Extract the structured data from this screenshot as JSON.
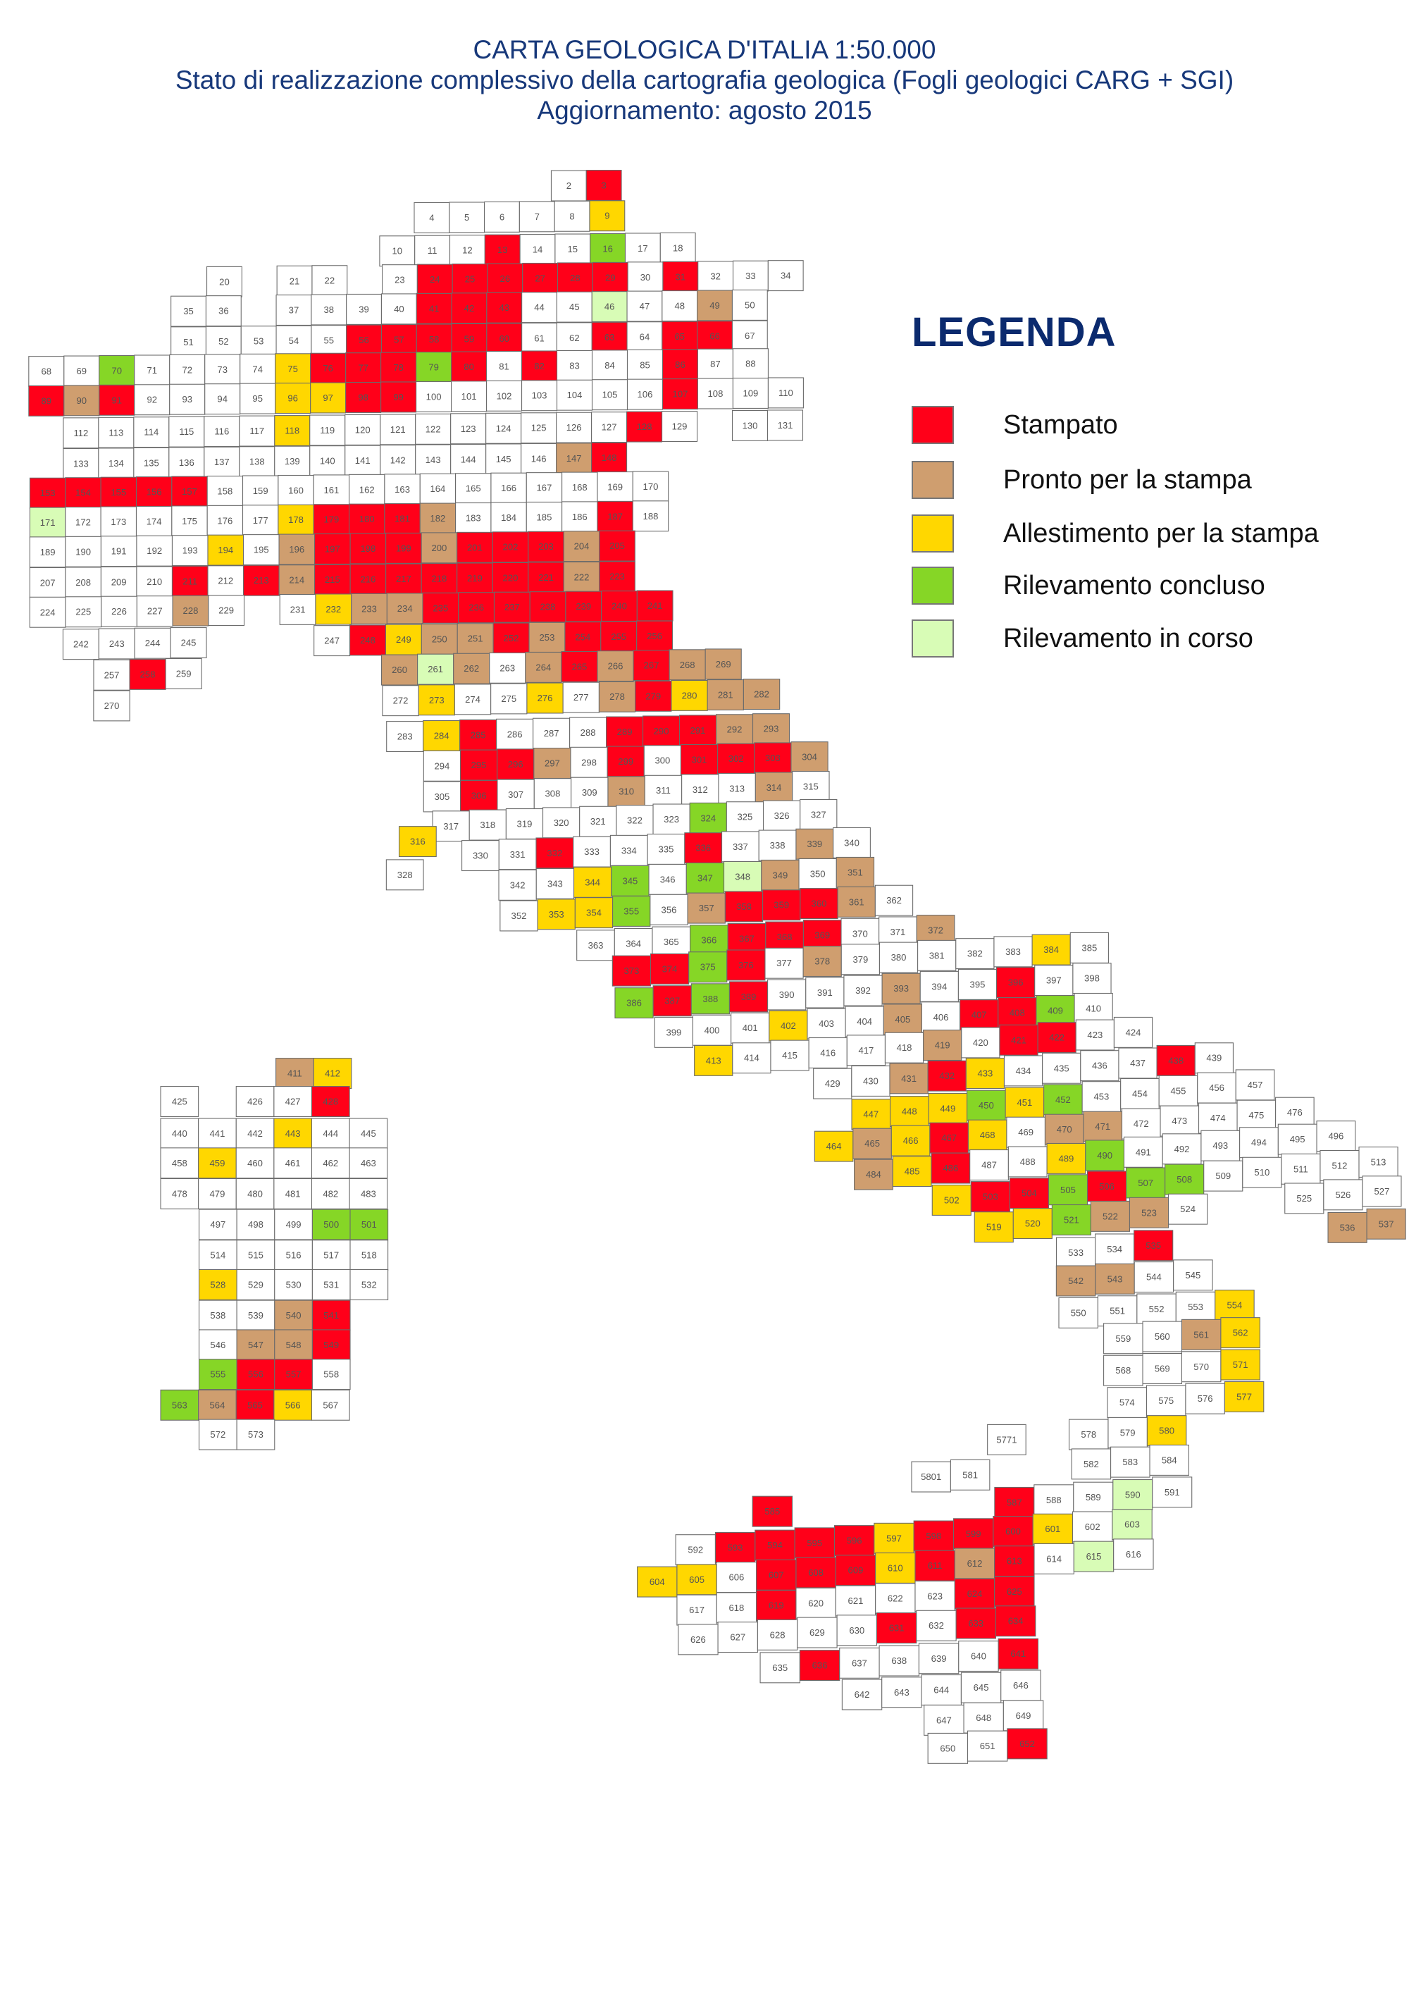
{
  "title": {
    "line1": "CARTA GEOLOGICA D'ITALIA 1:50.000",
    "line2": "Stato di realizzazione complessivo della cartografia geologica (Fogli geologici CARG + SGI)",
    "line3": "Aggiornamento:  agosto 2015"
  },
  "legend": {
    "title": "LEGENDA",
    "items": [
      {
        "code": "S",
        "label": "Stampato",
        "color": "#ff0019"
      },
      {
        "code": "P",
        "label": "Pronto per la stampa",
        "color": "#cf9e6f"
      },
      {
        "code": "A",
        "label": "Allestimento per la stampa",
        "color": "#ffd700"
      },
      {
        "code": "C",
        "label": "Rilevamento concluso",
        "color": "#86d626"
      },
      {
        "code": "I",
        "label": "Rilevamento in corso",
        "color": "#d8fcb6"
      }
    ],
    "default_color": "#ffffff"
  },
  "map": {
    "rows": [
      [
        "2",
        "3:S"
      ],
      [
        "4",
        "5",
        "6",
        "7",
        "8",
        "9:A"
      ],
      [
        "10",
        "11",
        "12",
        "13:S",
        "14",
        "15",
        "16:C",
        "17",
        "18"
      ],
      [
        "20",
        "",
        "21",
        "22",
        "",
        "23",
        "24:S",
        "25:S",
        "26:S",
        "27:S",
        "28:S",
        "29:S",
        "30",
        "31:S",
        "32",
        "33",
        "34"
      ],
      [
        "35",
        "36",
        "",
        "37",
        "38",
        "39",
        "40",
        "41:S",
        "42:S",
        "43:S",
        "44",
        "45",
        "46:I",
        "47",
        "48",
        "49:P",
        "50"
      ],
      [
        "51",
        "52",
        "53",
        "54",
        "55",
        "56:S",
        "57:S",
        "58:S",
        "59:S",
        "60:S",
        "61",
        "62",
        "63:S",
        "64",
        "65:S",
        "66:S",
        "67"
      ],
      [
        "68",
        "69",
        "70:C",
        "71",
        "72",
        "73",
        "74",
        "75:A",
        "76:S",
        "77:S",
        "78:S",
        "79:C",
        "80:S",
        "81",
        "82:S",
        "83",
        "84",
        "85",
        "86:S",
        "87",
        "88"
      ],
      [
        "89:S",
        "90:P",
        "91:S",
        "92",
        "93",
        "94",
        "95",
        "96:A",
        "97:A",
        "98:S",
        "99:S",
        "100",
        "101",
        "102",
        "103",
        "104",
        "105",
        "106",
        "107:S",
        "108",
        "109",
        "110"
      ],
      [
        "112",
        "113",
        "114",
        "115",
        "116",
        "117",
        "118:A",
        "119",
        "120",
        "121",
        "122",
        "123",
        "124",
        "125",
        "126",
        "127",
        "128:S",
        "129",
        "",
        "130",
        "131"
      ],
      [
        "133",
        "134",
        "135",
        "136",
        "137",
        "138",
        "139",
        "140",
        "141",
        "142",
        "143",
        "144",
        "145",
        "146",
        "147:P",
        "148:S"
      ],
      [
        "153:S",
        "154:S",
        "155:S",
        "156:S",
        "157:S",
        "158",
        "159",
        "160",
        "161",
        "162",
        "163",
        "164",
        "165",
        "166",
        "167",
        "168",
        "169",
        "170"
      ],
      [
        "171:I",
        "172",
        "173",
        "174",
        "175",
        "176",
        "177",
        "178:A",
        "179:S",
        "180:S",
        "181:S",
        "182:P",
        "183",
        "184",
        "185",
        "186",
        "187:S",
        "188"
      ],
      [
        "189",
        "190",
        "191",
        "192",
        "193",
        "194:A",
        "195",
        "196:P",
        "197:S",
        "198:S",
        "199:S",
        "200:P",
        "201:S",
        "202:S",
        "203:S",
        "204:P",
        "205:S"
      ],
      [
        "207",
        "208",
        "209",
        "210",
        "211:S",
        "212",
        "213:S",
        "214:P",
        "215:S",
        "216:S",
        "217:S",
        "218:S",
        "219:S",
        "220:S",
        "221:S",
        "222:P",
        "223:S"
      ],
      [
        "224",
        "225",
        "226",
        "227",
        "228:P",
        "229",
        "",
        "231",
        "232:A",
        "233:P",
        "234:P",
        "235:S",
        "236:S",
        "237:S",
        "238:S",
        "239:S",
        "240:S",
        "241:S"
      ],
      [
        "242",
        "243",
        "244",
        "245",
        "",
        "",
        "",
        "247",
        "248:S",
        "249:A",
        "250:P",
        "251:P",
        "252:S",
        "253:P",
        "254:S",
        "255:S",
        "256:S"
      ],
      [
        "257",
        "258:S",
        "259",
        "",
        "",
        "",
        "",
        "",
        "260:P",
        "261:I",
        "262:P",
        "263",
        "264:P",
        "265:S",
        "266:P",
        "267:S",
        "268:P",
        "269:P"
      ],
      [
        "270",
        "",
        "",
        "",
        "",
        "",
        "",
        "",
        "272",
        "273:A",
        "274",
        "275",
        "276:A",
        "277",
        "278:P",
        "279:S",
        "280:A",
        "281:P",
        "282:P"
      ],
      [
        "283",
        "284:A",
        "285:S",
        "286",
        "287",
        "288",
        "289:S",
        "290:S",
        "291:S",
        "292:P",
        "293:P"
      ],
      [
        "294",
        "295:S",
        "296:S",
        "297:P",
        "298",
        "299:S",
        "300",
        "301:S",
        "302:S",
        "303:S",
        "304:P"
      ],
      [
        "305",
        "306:S",
        "307",
        "308",
        "309",
        "310:P",
        "311",
        "312",
        "313",
        "314:P",
        "315"
      ],
      [
        "317",
        "318",
        "319",
        "320",
        "321",
        "322",
        "323",
        "324:C",
        "325",
        "326",
        "327"
      ],
      [
        "316:A"
      ],
      [
        "328"
      ],
      [
        "330",
        "331",
        "332:S",
        "333",
        "334",
        "335",
        "336:S",
        "337",
        "338",
        "339:P",
        "340"
      ],
      [
        "342",
        "343",
        "344:A",
        "345:C",
        "346",
        "347:C",
        "348:I",
        "349:P",
        "350",
        "351:P"
      ],
      [
        "352",
        "353:A",
        "354:A",
        "355:C",
        "356",
        "357:P",
        "358:S",
        "359:S",
        "360:S",
        "361:P",
        "362"
      ],
      [
        "363",
        "364",
        "365",
        "366:C",
        "367:S",
        "368:S",
        "369:S",
        "370",
        "371",
        "372:P"
      ],
      [
        "373:S",
        "374:S",
        "375:C",
        "376:S",
        "377",
        "378:P",
        "379",
        "380",
        "381",
        "382",
        "383",
        "384:A",
        "385"
      ],
      [
        "386:C",
        "387:S",
        "388:C",
        "389:S",
        "390",
        "391",
        "392",
        "393:P",
        "394",
        "395",
        "396:S",
        "397",
        "398"
      ],
      [
        "399",
        "400",
        "401",
        "402:A",
        "403",
        "404",
        "405:P",
        "406",
        "407:S",
        "408:S",
        "409:C",
        "410"
      ],
      [
        "413:A",
        "414",
        "415",
        "416",
        "417",
        "418",
        "419:P",
        "420",
        "421:S",
        "422:S",
        "423",
        "424"
      ],
      [
        "429",
        "430",
        "431:P",
        "432:S",
        "433:A",
        "434",
        "435",
        "436",
        "437",
        "438:S",
        "439"
      ],
      [
        "447:A",
        "448:A",
        "449:A",
        "450:C",
        "451:A",
        "452:C",
        "453",
        "454",
        "455",
        "456",
        "457"
      ],
      [
        "464:A",
        "465:P",
        "466:A",
        "467:S",
        "468:A",
        "469",
        "470:P",
        "471:P",
        "472",
        "473",
        "474",
        "475",
        "476"
      ],
      [
        "484:P",
        "485:A",
        "486:S",
        "487",
        "488",
        "489:A",
        "490:C",
        "491",
        "492",
        "493",
        "494",
        "495",
        "496"
      ],
      [
        "502:A",
        "503:S",
        "504:S",
        "505:C",
        "506:S",
        "507:C",
        "508:C",
        "509",
        "510",
        "511",
        "512",
        "513"
      ],
      [
        "519:A",
        "520:A",
        "521:C",
        "522:P",
        "523:P",
        "524",
        "",
        "",
        "525",
        "526",
        "527"
      ],
      [
        "533",
        "534",
        "535:S",
        "",
        "",
        "",
        "",
        "536:P",
        "537:P"
      ],
      [
        "542:P",
        "543:P",
        "544",
        "545"
      ],
      [
        "550",
        "551",
        "552",
        "553",
        "554:A"
      ],
      [
        "559",
        "560",
        "561:P",
        "562:A"
      ],
      [
        "568",
        "569",
        "570",
        "571:A"
      ],
      [
        "574",
        "575",
        "576",
        "577:A"
      ],
      [
        "578",
        "579",
        "580:A"
      ],
      [
        "5771"
      ],
      [
        "582",
        "583",
        "584"
      ],
      [
        "5801",
        "581"
      ],
      [
        "587:S",
        "588",
        "589",
        "590:I",
        "591"
      ],
      [
        "585:S"
      ],
      [
        "592",
        "593:S",
        "594:S",
        "595:S",
        "596:S",
        "597:A",
        "598:S",
        "599:S",
        "600:S",
        "601:A",
        "602",
        "603:I"
      ],
      [
        "604:A",
        "605:A",
        "606",
        "607:S",
        "608:S",
        "609:S",
        "610:A",
        "611:S",
        "612:P",
        "613:S",
        "614",
        "615:I",
        "616"
      ],
      [
        "617",
        "618",
        "619:S",
        "620",
        "621",
        "622",
        "623",
        "624:S",
        "625:S"
      ],
      [
        "626",
        "627",
        "628",
        "629",
        "630",
        "631:S",
        "632",
        "633:S",
        "634:S"
      ],
      [
        "635",
        "636:S",
        "637",
        "638",
        "639",
        "640",
        "641:S"
      ],
      [
        "642",
        "643",
        "644",
        "645",
        "646"
      ],
      [
        "647",
        "648",
        "649"
      ],
      [
        "650",
        "651",
        "652:S"
      ],
      [
        "411:P",
        "412:A"
      ],
      [
        "425",
        "",
        "426",
        "427",
        "428:S"
      ],
      [
        "440",
        "441",
        "442",
        "443:A",
        "444",
        "445"
      ],
      [
        "458",
        "459:A",
        "460",
        "461",
        "462",
        "463"
      ],
      [
        "478",
        "479",
        "480",
        "481",
        "482",
        "483"
      ],
      [
        "497",
        "498",
        "499",
        "500:C",
        "501:C"
      ],
      [
        "514",
        "515",
        "516",
        "517",
        "518"
      ],
      [
        "528:A",
        "529",
        "530",
        "531",
        "532"
      ],
      [
        "538",
        "539",
        "540:P",
        "541:S"
      ],
      [
        "546",
        "547:P",
        "548:P",
        "549:S"
      ],
      [
        "555:C",
        "556:S",
        "557:S",
        "558"
      ],
      [
        "563:C",
        "564:P",
        "565:S",
        "566:A",
        "567"
      ],
      [
        "572",
        "573"
      ]
    ]
  }
}
